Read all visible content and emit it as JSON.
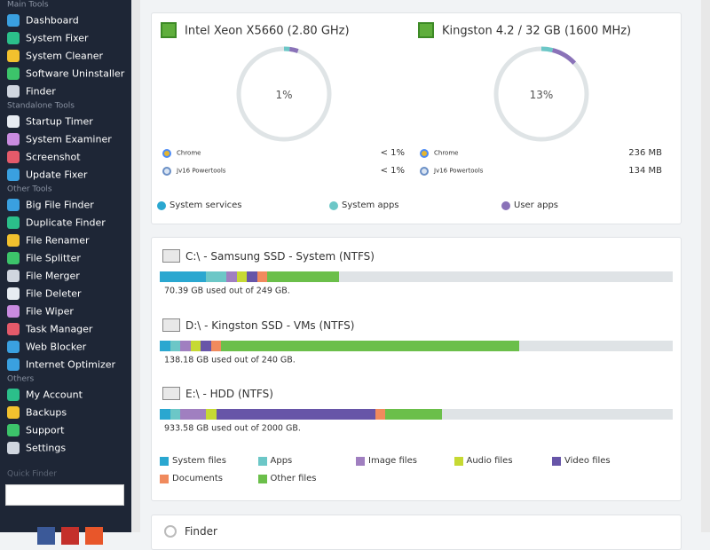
{
  "sidebar": {
    "sections": [
      {
        "title": "Main Tools",
        "items": [
          "Dashboard",
          "System Fixer",
          "System Cleaner",
          "Software Uninstaller",
          "Finder"
        ]
      },
      {
        "title": "Standalone Tools",
        "items": [
          "Startup Timer",
          "System Examiner",
          "Screenshot",
          "Update Fixer"
        ]
      },
      {
        "title": "Other Tools",
        "items": [
          "Big File Finder",
          "Duplicate Finder",
          "File Renamer",
          "File Splitter",
          "File Merger",
          "File Deleter",
          "File Wiper",
          "Task Manager",
          "Web Blocker",
          "Internet Optimizer"
        ]
      },
      {
        "title": "Others",
        "items": [
          "My Account",
          "Backups",
          "Support",
          "Settings"
        ]
      }
    ],
    "quick_finder": "Quick Finder"
  },
  "usage": {
    "cpu": {
      "title": "Intel Xeon X5660 (2.80 GHz)",
      "gauge": "1%",
      "segments": [
        0,
        2,
        3
      ],
      "processes": [
        {
          "name": "Chrome",
          "value": "< 1%"
        },
        {
          "name": "Jv16 Powertools",
          "value": "< 1%"
        }
      ]
    },
    "ram": {
      "title": "Kingston 4.2 / 32 GB (1600 MHz)",
      "gauge": "13%",
      "segments": [
        0,
        4,
        9
      ],
      "processes": [
        {
          "name": "Chrome",
          "value": "236 MB"
        },
        {
          "name": "Jv16 Powertools",
          "value": "134 MB"
        }
      ]
    },
    "legend": [
      {
        "name": "System services",
        "color": "#2aa7d0"
      },
      {
        "name": "System apps",
        "color": "#6cc7c7"
      },
      {
        "name": "User apps",
        "color": "#8a72b8"
      }
    ]
  },
  "disks": {
    "drives": [
      {
        "name": "C:\\ - Samsung SSD - System (NTFS)",
        "segments": [
          9,
          4,
          2,
          2,
          2,
          2,
          14
        ],
        "used": "70.39 GB used out of 249 GB."
      },
      {
        "name": "D:\\ - Kingston SSD - VMs (NTFS)",
        "segments": [
          2,
          2,
          2,
          2,
          2,
          2,
          58
        ],
        "used": "138.18 GB used out of 240 GB."
      },
      {
        "name": "E:\\ - HDD (NTFS)",
        "segments": [
          2,
          2,
          5,
          2,
          31,
          2,
          11
        ],
        "used": "933.58 GB used out of 2000 GB."
      }
    ],
    "legend": [
      {
        "name": "System files",
        "color": "#2aa7d0"
      },
      {
        "name": "Apps",
        "color": "#6cc7c7"
      },
      {
        "name": "Image files",
        "color": "#a07fc0"
      },
      {
        "name": "Audio files",
        "color": "#c6d933"
      },
      {
        "name": "Video files",
        "color": "#6755a8"
      },
      {
        "name": "Documents",
        "color": "#f08a5d"
      },
      {
        "name": "Other files",
        "color": "#6bbf4a"
      }
    ]
  },
  "finder": {
    "title": "Finder"
  }
}
